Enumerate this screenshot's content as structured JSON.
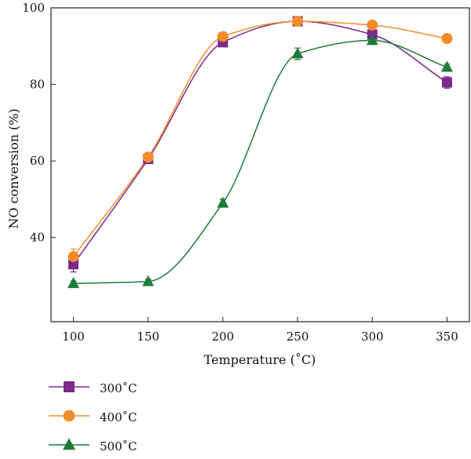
{
  "chart_data": {
    "type": "line",
    "xlabel": "Temperature (˚C)",
    "ylabel": "NO conversion (%)",
    "xlim": [
      85,
      365
    ],
    "ylim": [
      18,
      100
    ],
    "xticks": [
      100,
      150,
      200,
      250,
      300,
      350
    ],
    "yticks": [
      40,
      60,
      80,
      100
    ],
    "grid": false,
    "legend_position": "bottom-left",
    "x": [
      100,
      150,
      200,
      250,
      300,
      350
    ],
    "series": [
      {
        "name": "300˚C",
        "color": "#7b2a8a",
        "marker": "square",
        "values": [
          33,
          60.5,
          91,
          96.5,
          93,
          80.5
        ],
        "errors": [
          2,
          1,
          0.8,
          0.8,
          0.8,
          1.5
        ]
      },
      {
        "name": "400˚C",
        "color": "#f28c28",
        "marker": "circle",
        "values": [
          35,
          61,
          92.5,
          96.5,
          95.5,
          92
        ],
        "errors": [
          2,
          1,
          0.8,
          0.6,
          0.6,
          0.6
        ]
      },
      {
        "name": "500˚C",
        "color": "#1f7a3a",
        "marker": "triangle",
        "values": [
          28,
          28.5,
          49,
          88,
          91.5,
          84.5
        ],
        "errors": [
          0.6,
          0.6,
          1,
          1.5,
          0.8,
          0.8
        ]
      }
    ]
  }
}
